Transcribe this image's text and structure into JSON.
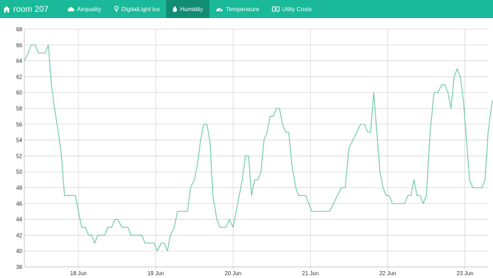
{
  "colors": {
    "navbar": "#1ab99a",
    "active_tab": "#128d74",
    "line": "#6ccaa4",
    "grid": "#cfcfcf"
  },
  "navbar": {
    "brand": {
      "icon": "home-icon",
      "label": "room 207"
    },
    "tabs": [
      {
        "icon": "cloud-icon",
        "label": "Airquality",
        "active": false
      },
      {
        "icon": "lightbulb-icon",
        "label": "DigitalLight lux",
        "active": false
      },
      {
        "icon": "droplet-icon",
        "label": "Humidity",
        "active": true
      },
      {
        "icon": "gauge-icon",
        "label": "Temperature",
        "active": false
      },
      {
        "icon": "money-icon",
        "label": "Utiliy Costs",
        "active": false
      }
    ]
  },
  "chart_data": {
    "type": "line",
    "ylim": [
      38,
      68
    ],
    "yticks": [
      38,
      40,
      42,
      44,
      46,
      48,
      50,
      52,
      54,
      56,
      58,
      60,
      62,
      64,
      66,
      68
    ],
    "xticks": [
      {
        "label": "18 Jun",
        "t": 1.0
      },
      {
        "label": "19 Jun",
        "t": 2.0
      },
      {
        "label": "20 Jun",
        "t": 3.0
      },
      {
        "label": "21 Jun",
        "t": 4.0
      },
      {
        "label": "22 Jun",
        "t": 5.0
      },
      {
        "label": "23 Jun",
        "t": 6.0
      }
    ],
    "xlim": [
      0.3,
      6.3
    ],
    "grid": true,
    "series": [
      {
        "points": [
          [
            0.3,
            64
          ],
          [
            0.35,
            65
          ],
          [
            0.39,
            66
          ],
          [
            0.44,
            66
          ],
          [
            0.48,
            65
          ],
          [
            0.53,
            65
          ],
          [
            0.57,
            65
          ],
          [
            0.61,
            66
          ],
          [
            0.65,
            61
          ],
          [
            0.69,
            58
          ],
          [
            0.74,
            55
          ],
          [
            0.78,
            52
          ],
          [
            0.82,
            47
          ],
          [
            0.87,
            47
          ],
          [
            0.91,
            47
          ],
          [
            0.96,
            47
          ],
          [
            1.0,
            45
          ],
          [
            1.04,
            43
          ],
          [
            1.09,
            43
          ],
          [
            1.13,
            42
          ],
          [
            1.17,
            42
          ],
          [
            1.21,
            41
          ],
          [
            1.25,
            42
          ],
          [
            1.3,
            42
          ],
          [
            1.34,
            42
          ],
          [
            1.38,
            43
          ],
          [
            1.43,
            43
          ],
          [
            1.47,
            44
          ],
          [
            1.51,
            44
          ],
          [
            1.56,
            43
          ],
          [
            1.6,
            43
          ],
          [
            1.64,
            43
          ],
          [
            1.68,
            42
          ],
          [
            1.73,
            42
          ],
          [
            1.77,
            42
          ],
          [
            1.82,
            42
          ],
          [
            1.86,
            41
          ],
          [
            1.9,
            41
          ],
          [
            1.94,
            41
          ],
          [
            1.98,
            41
          ],
          [
            2.02,
            40
          ],
          [
            2.07,
            41
          ],
          [
            2.11,
            41
          ],
          [
            2.15,
            40
          ],
          [
            2.19,
            42
          ],
          [
            2.24,
            43
          ],
          [
            2.28,
            45
          ],
          [
            2.32,
            45
          ],
          [
            2.36,
            45
          ],
          [
            2.41,
            45
          ],
          [
            2.45,
            48
          ],
          [
            2.5,
            49
          ],
          [
            2.54,
            51
          ],
          [
            2.58,
            54
          ],
          [
            2.62,
            56
          ],
          [
            2.66,
            56
          ],
          [
            2.7,
            54
          ],
          [
            2.74,
            47
          ],
          [
            2.79,
            44
          ],
          [
            2.83,
            43
          ],
          [
            2.87,
            43
          ],
          [
            2.91,
            43
          ],
          [
            2.95,
            44
          ],
          [
            3.0,
            43
          ],
          [
            3.04,
            45
          ],
          [
            3.08,
            47
          ],
          [
            3.12,
            49
          ],
          [
            3.16,
            52
          ],
          [
            3.2,
            52
          ],
          [
            3.24,
            47
          ],
          [
            3.28,
            49
          ],
          [
            3.32,
            49
          ],
          [
            3.36,
            50
          ],
          [
            3.4,
            54
          ],
          [
            3.44,
            55
          ],
          [
            3.48,
            57
          ],
          [
            3.52,
            57
          ],
          [
            3.56,
            58
          ],
          [
            3.6,
            58
          ],
          [
            3.64,
            56
          ],
          [
            3.68,
            55
          ],
          [
            3.72,
            55
          ],
          [
            3.76,
            51
          ],
          [
            3.81,
            48
          ],
          [
            3.85,
            47
          ],
          [
            3.9,
            47
          ],
          [
            3.94,
            47
          ],
          [
            3.98,
            46
          ],
          [
            4.02,
            45
          ],
          [
            4.07,
            45
          ],
          [
            4.11,
            45
          ],
          [
            4.15,
            45
          ],
          [
            4.2,
            45
          ],
          [
            4.25,
            45
          ],
          [
            4.3,
            46
          ],
          [
            4.35,
            47
          ],
          [
            4.4,
            48
          ],
          [
            4.45,
            48
          ],
          [
            4.5,
            53
          ],
          [
            4.55,
            54
          ],
          [
            4.6,
            55
          ],
          [
            4.65,
            56
          ],
          [
            4.7,
            56
          ],
          [
            4.74,
            55
          ],
          [
            4.78,
            55
          ],
          [
            4.82,
            60
          ],
          [
            4.86,
            55
          ],
          [
            4.9,
            50
          ],
          [
            4.94,
            48
          ],
          [
            4.98,
            47
          ],
          [
            5.02,
            47
          ],
          [
            5.06,
            46
          ],
          [
            5.1,
            46
          ],
          [
            5.14,
            46
          ],
          [
            5.18,
            46
          ],
          [
            5.22,
            46
          ],
          [
            5.26,
            47
          ],
          [
            5.3,
            47
          ],
          [
            5.34,
            49
          ],
          [
            5.38,
            47
          ],
          [
            5.42,
            47
          ],
          [
            5.46,
            46
          ],
          [
            5.5,
            47
          ],
          [
            5.55,
            55
          ],
          [
            5.6,
            60
          ],
          [
            5.65,
            60
          ],
          [
            5.7,
            61
          ],
          [
            5.74,
            61
          ],
          [
            5.78,
            60
          ],
          [
            5.82,
            58
          ],
          [
            5.86,
            62
          ],
          [
            5.9,
            63
          ],
          [
            5.94,
            62
          ],
          [
            5.98,
            59
          ],
          [
            6.02,
            54
          ],
          [
            6.06,
            49
          ],
          [
            6.1,
            48
          ],
          [
            6.14,
            48
          ],
          [
            6.18,
            48
          ],
          [
            6.22,
            48
          ],
          [
            6.26,
            49
          ],
          [
            6.3,
            55
          ],
          [
            6.34,
            58
          ],
          [
            6.38,
            59
          ]
        ]
      }
    ]
  }
}
